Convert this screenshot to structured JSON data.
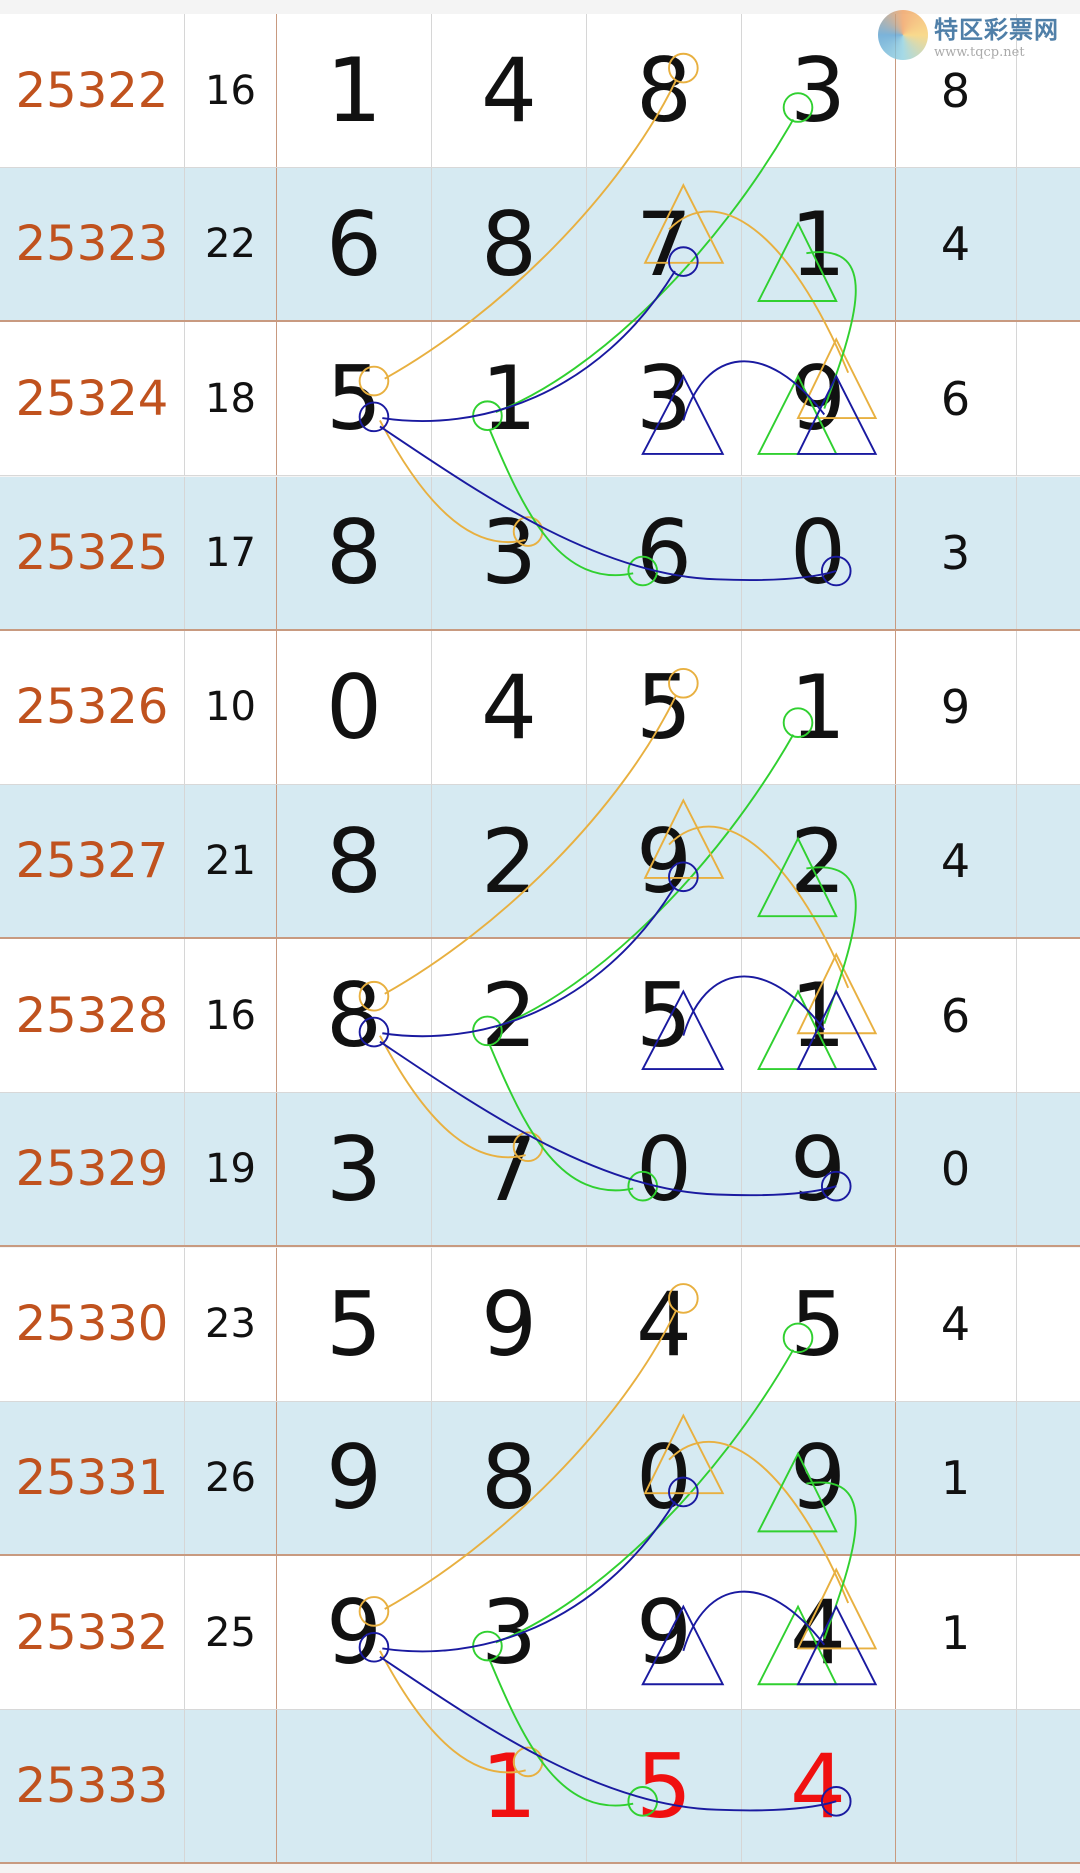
{
  "logo": {
    "name": "特区彩票网",
    "url": "www.tqcp.net"
  },
  "colors": {
    "issue": "#c0521e",
    "prediction": "#f01010",
    "row_alt": "#d6eaf2",
    "orange_line": "#e8b040",
    "green_line": "#30d030",
    "blue_line": "#1a1aa0"
  },
  "rows": [
    {
      "issue": "25322",
      "sum": "16",
      "digits": [
        "1",
        "4",
        "8",
        "3"
      ],
      "last": "8"
    },
    {
      "issue": "25323",
      "sum": "22",
      "digits": [
        "6",
        "8",
        "7",
        "1"
      ],
      "last": "4"
    },
    {
      "issue": "25324",
      "sum": "18",
      "digits": [
        "5",
        "1",
        "3",
        "9"
      ],
      "last": "6"
    },
    {
      "issue": "25325",
      "sum": "17",
      "digits": [
        "8",
        "3",
        "6",
        "0"
      ],
      "last": "3"
    },
    {
      "issue": "25326",
      "sum": "10",
      "digits": [
        "0",
        "4",
        "5",
        "1"
      ],
      "last": "9"
    },
    {
      "issue": "25327",
      "sum": "21",
      "digits": [
        "8",
        "2",
        "9",
        "2"
      ],
      "last": "4"
    },
    {
      "issue": "25328",
      "sum": "16",
      "digits": [
        "8",
        "2",
        "5",
        "1"
      ],
      "last": "6"
    },
    {
      "issue": "25329",
      "sum": "19",
      "digits": [
        "3",
        "7",
        "0",
        "9"
      ],
      "last": "0"
    },
    {
      "issue": "25330",
      "sum": "23",
      "digits": [
        "5",
        "9",
        "4",
        "5"
      ],
      "last": "4"
    },
    {
      "issue": "25331",
      "sum": "26",
      "digits": [
        "9",
        "8",
        "0",
        "9"
      ],
      "last": "1"
    },
    {
      "issue": "25332",
      "sum": "25",
      "digits": [
        "9",
        "3",
        "9",
        "4"
      ],
      "last": "1"
    },
    {
      "issue": "25333",
      "sum": "",
      "digits": [
        "",
        "1",
        "5",
        "4"
      ],
      "last": "",
      "prediction": true
    }
  ]
}
